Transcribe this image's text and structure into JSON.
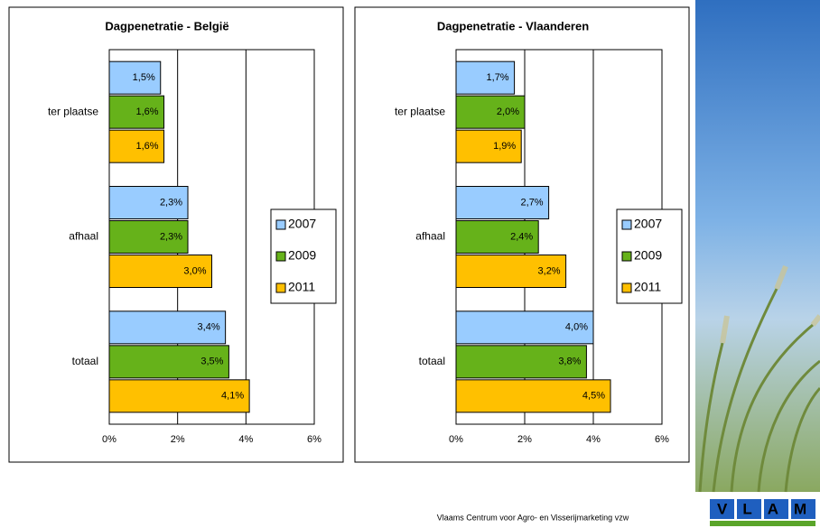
{
  "chart_data": [
    {
      "type": "hbar",
      "title": "Dagpenetratie - België",
      "categories": [
        "ter plaatse",
        "afhaal",
        "totaal"
      ],
      "series": [
        {
          "name": "2007",
          "color": "#99ccff",
          "values": [
            1.5,
            2.3,
            3.4
          ],
          "value_labels": [
            "1,5%",
            "2,3%",
            "3,4%"
          ]
        },
        {
          "name": "2009",
          "color": "#66b21a",
          "values": [
            1.6,
            2.3,
            3.5
          ],
          "value_labels": [
            "1,6%",
            "2,3%",
            "3,5%"
          ]
        },
        {
          "name": "2011",
          "color": "#ffc000",
          "values": [
            1.6,
            3.0,
            4.1
          ],
          "value_labels": [
            "1,6%",
            "3,0%",
            "4,1%"
          ]
        }
      ],
      "xlim": [
        0,
        6
      ],
      "xticks": [
        {
          "value": 0,
          "label": "0%"
        },
        {
          "value": 2,
          "label": "2%"
        },
        {
          "value": 4,
          "label": "4%"
        },
        {
          "value": 6,
          "label": "6%"
        }
      ],
      "grid": true,
      "legend": "right"
    },
    {
      "type": "hbar",
      "title": "Dagpenetratie - Vlaanderen",
      "categories": [
        "ter plaatse",
        "afhaal",
        "totaal"
      ],
      "series": [
        {
          "name": "2007",
          "color": "#99ccff",
          "values": [
            1.7,
            2.7,
            4.0
          ],
          "value_labels": [
            "1,7%",
            "2,7%",
            "4,0%"
          ]
        },
        {
          "name": "2009",
          "color": "#66b21a",
          "values": [
            2.0,
            2.4,
            3.8
          ],
          "value_labels": [
            "2,0%",
            "2,4%",
            "3,8%"
          ]
        },
        {
          "name": "2011",
          "color": "#ffc000",
          "values": [
            1.9,
            3.2,
            4.5
          ],
          "value_labels": [
            "1,9%",
            "3,2%",
            "4,5%"
          ]
        }
      ],
      "xlim": [
        0,
        6
      ],
      "xticks": [
        {
          "value": 0,
          "label": "0%"
        },
        {
          "value": 2,
          "label": "2%"
        },
        {
          "value": 4,
          "label": "4%"
        },
        {
          "value": 6,
          "label": "6%"
        }
      ],
      "grid": true,
      "legend": "right"
    }
  ],
  "footer": "Vlaams Centrum voor Agro- en Visserijmarketing vzw",
  "logo": "VLAM"
}
